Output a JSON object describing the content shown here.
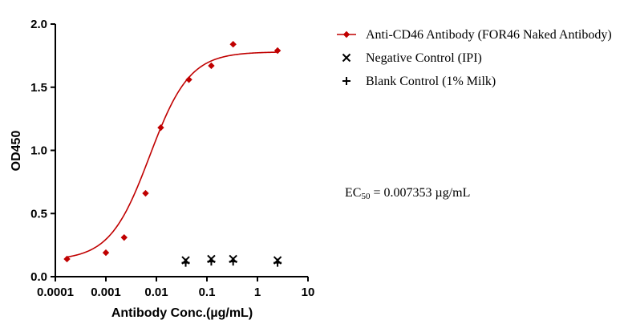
{
  "chart_data": {
    "type": "scatter",
    "xlabel": "Antibody Conc.(µg/mL)",
    "ylabel": "OD450",
    "xscale": "log",
    "xlim": [
      0.0001,
      10
    ],
    "ylim": [
      0.0,
      2.0
    ],
    "x_ticks": [
      0.0001,
      0.001,
      0.01,
      0.1,
      1,
      10
    ],
    "x_tick_labels": [
      "0.0001",
      "0.001",
      "0.01",
      "0.1",
      "1",
      "10"
    ],
    "y_ticks": [
      0.0,
      0.5,
      1.0,
      1.5,
      2.0
    ],
    "y_tick_labels": [
      "0.0",
      "0.5",
      "1.0",
      "1.5",
      "2.0"
    ],
    "legend_position": "top-right",
    "series": [
      {
        "name": "Anti-CD46 Antibody (FOR46 Naked Antibody)",
        "marker": "diamond",
        "color": "#c00000",
        "x": [
          0.00017,
          0.001,
          0.0023,
          0.0061,
          0.0122,
          0.044,
          0.122,
          0.33,
          2.5
        ],
        "y": [
          0.14,
          0.19,
          0.31,
          0.66,
          1.18,
          1.56,
          1.67,
          1.84,
          1.79
        ],
        "fit_curve": {
          "model": "4PL",
          "bottom": 0.13,
          "top": 1.78,
          "ec50": 0.007353,
          "hill": 1.1
        }
      },
      {
        "name": "Negative Control (IPI)",
        "marker": "x",
        "color": "#000000",
        "x": [
          0.038,
          0.122,
          0.33,
          2.5
        ],
        "y": [
          0.13,
          0.14,
          0.14,
          0.13
        ]
      },
      {
        "name": "Blank Control (1% Milk)",
        "marker": "plus",
        "color": "#000000",
        "x": [
          0.038,
          0.122,
          0.33,
          2.5
        ],
        "y": [
          0.11,
          0.12,
          0.12,
          0.11
        ]
      }
    ],
    "annotations": [
      {
        "id": "ec50",
        "prefix": "EC",
        "subscript": "50",
        "suffix": " = 0.007353 µg/mL"
      }
    ]
  }
}
